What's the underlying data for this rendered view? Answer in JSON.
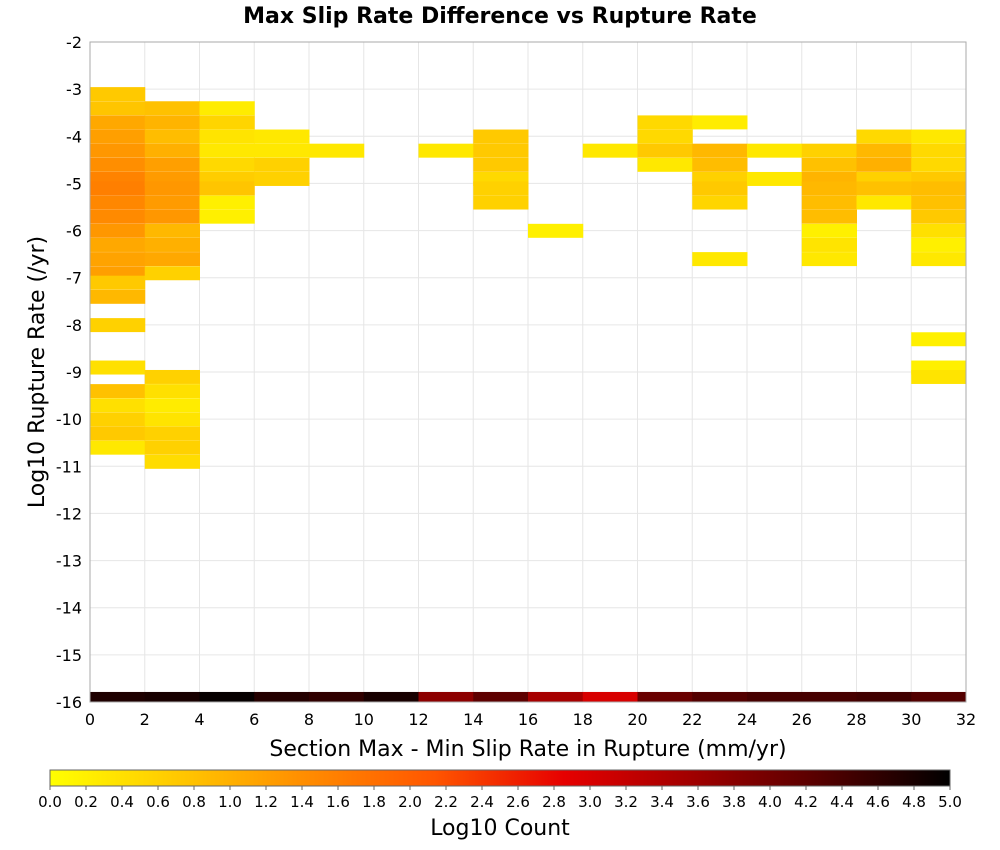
{
  "chart_data": {
    "type": "heatmap",
    "title": "Max Slip Rate Difference vs Rupture Rate",
    "xlabel": "Section Max - Min Slip Rate in Rupture (mm/yr)",
    "ylabel": "Log10 Rupture Rate (/yr)",
    "xlim": [
      0,
      32
    ],
    "ylim": [
      -16,
      -2
    ],
    "x_ticks": [
      0,
      2,
      4,
      6,
      8,
      10,
      12,
      14,
      16,
      18,
      20,
      22,
      24,
      26,
      28,
      30,
      32
    ],
    "y_ticks": [
      -2,
      -3,
      -4,
      -5,
      -6,
      -7,
      -8,
      -9,
      -10,
      -11,
      -12,
      -13,
      -14,
      -15,
      -16
    ],
    "grid": true,
    "x_bin_width": 2,
    "y_bin_height": 0.286,
    "colorbar": {
      "label": "Log10 Count",
      "range": [
        0,
        5
      ],
      "ticks": [
        "0.0",
        "0.2",
        "0.4",
        "0.6",
        "0.8",
        "1.0",
        "1.2",
        "1.4",
        "1.6",
        "1.8",
        "2.0",
        "2.2",
        "2.4",
        "2.6",
        "2.8",
        "3.0",
        "3.2",
        "3.4",
        "3.6",
        "3.8",
        "4.0",
        "4.2",
        "4.4",
        "4.6",
        "4.8",
        "5.0"
      ]
    },
    "cells": [
      [
        1,
        -3.1,
        0.7
      ],
      [
        1,
        -3.4,
        0.75
      ],
      [
        1,
        -3.7,
        1.1
      ],
      [
        1,
        -4.0,
        1.2
      ],
      [
        1,
        -4.3,
        1.3
      ],
      [
        1,
        -4.6,
        1.4
      ],
      [
        1,
        -4.9,
        1.55
      ],
      [
        1,
        -5.1,
        1.6
      ],
      [
        1,
        -5.4,
        1.5
      ],
      [
        1,
        -5.7,
        1.45
      ],
      [
        1,
        -6.0,
        1.3
      ],
      [
        1,
        -6.3,
        1.1
      ],
      [
        1,
        -6.6,
        1.15
      ],
      [
        1,
        -6.9,
        1.2
      ],
      [
        1,
        -7.1,
        0.7
      ],
      [
        1,
        -7.4,
        0.9
      ],
      [
        1,
        -8.0,
        0.6
      ],
      [
        1,
        -8.9,
        0.4
      ],
      [
        1,
        -9.4,
        0.8
      ],
      [
        1,
        -9.7,
        0.4
      ],
      [
        1,
        -10.0,
        0.6
      ],
      [
        1,
        -10.3,
        0.7
      ],
      [
        1,
        -10.6,
        0.3
      ],
      [
        3,
        -3.4,
        0.8
      ],
      [
        3,
        -3.7,
        0.95
      ],
      [
        3,
        -4.0,
        0.85
      ],
      [
        3,
        -4.3,
        1.0
      ],
      [
        3,
        -4.6,
        1.2
      ],
      [
        3,
        -4.9,
        1.25
      ],
      [
        3,
        -5.1,
        1.3
      ],
      [
        3,
        -5.4,
        1.25
      ],
      [
        3,
        -5.7,
        1.3
      ],
      [
        3,
        -6.0,
        0.9
      ],
      [
        3,
        -6.3,
        1.0
      ],
      [
        3,
        -6.6,
        1.1
      ],
      [
        3,
        -6.9,
        0.6
      ],
      [
        3,
        -9.1,
        0.6
      ],
      [
        3,
        -9.4,
        0.4
      ],
      [
        3,
        -9.7,
        0.25
      ],
      [
        3,
        -10.0,
        0.35
      ],
      [
        3,
        -10.3,
        0.6
      ],
      [
        3,
        -10.6,
        0.6
      ],
      [
        3,
        -10.9,
        0.45
      ],
      [
        5,
        -3.4,
        0.25
      ],
      [
        5,
        -3.7,
        0.55
      ],
      [
        5,
        -4.0,
        0.35
      ],
      [
        5,
        -4.3,
        0.3
      ],
      [
        5,
        -4.6,
        0.5
      ],
      [
        5,
        -4.9,
        0.65
      ],
      [
        5,
        -5.1,
        0.75
      ],
      [
        5,
        -5.4,
        0.2
      ],
      [
        5,
        -5.7,
        0.2
      ],
      [
        7,
        -4.0,
        0.3
      ],
      [
        7,
        -4.3,
        0.3
      ],
      [
        7,
        -4.6,
        0.6
      ],
      [
        7,
        -4.9,
        0.6
      ],
      [
        9,
        -4.3,
        0.3
      ],
      [
        13,
        -4.3,
        0.3
      ],
      [
        15,
        -4.0,
        0.7
      ],
      [
        15,
        -4.3,
        0.7
      ],
      [
        15,
        -4.6,
        0.7
      ],
      [
        15,
        -4.9,
        0.5
      ],
      [
        15,
        -5.1,
        0.6
      ],
      [
        15,
        -5.4,
        0.6
      ],
      [
        17,
        -6.0,
        0.2
      ],
      [
        19,
        -4.3,
        0.3
      ],
      [
        21,
        -3.7,
        0.5
      ],
      [
        21,
        -4.0,
        0.5
      ],
      [
        21,
        -4.3,
        0.7
      ],
      [
        21,
        -4.6,
        0.3
      ],
      [
        23,
        -3.7,
        0.25
      ],
      [
        23,
        -4.3,
        0.9
      ],
      [
        23,
        -4.6,
        0.85
      ],
      [
        23,
        -4.9,
        0.6
      ],
      [
        23,
        -5.1,
        0.7
      ],
      [
        23,
        -5.4,
        0.55
      ],
      [
        23,
        -6.6,
        0.3
      ],
      [
        25,
        -4.3,
        0.3
      ],
      [
        25,
        -4.9,
        0.3
      ],
      [
        27,
        -4.3,
        0.6
      ],
      [
        27,
        -4.6,
        0.8
      ],
      [
        27,
        -4.9,
        0.95
      ],
      [
        27,
        -5.1,
        0.9
      ],
      [
        27,
        -5.4,
        0.85
      ],
      [
        27,
        -5.7,
        0.85
      ],
      [
        27,
        -6.0,
        0.2
      ],
      [
        27,
        -6.3,
        0.35
      ],
      [
        27,
        -6.6,
        0.3
      ],
      [
        29,
        -4.0,
        0.5
      ],
      [
        29,
        -4.3,
        0.9
      ],
      [
        29,
        -4.6,
        1.0
      ],
      [
        29,
        -4.9,
        0.6
      ],
      [
        29,
        -5.1,
        0.8
      ],
      [
        29,
        -5.4,
        0.3
      ],
      [
        31,
        -4.0,
        0.3
      ],
      [
        31,
        -4.3,
        0.5
      ],
      [
        31,
        -4.6,
        0.5
      ],
      [
        31,
        -4.9,
        0.7
      ],
      [
        31,
        -5.1,
        0.85
      ],
      [
        31,
        -5.4,
        0.8
      ],
      [
        31,
        -5.7,
        0.7
      ],
      [
        31,
        -6.0,
        0.4
      ],
      [
        31,
        -6.3,
        0.2
      ],
      [
        31,
        -6.6,
        0.3
      ],
      [
        31,
        -8.3,
        0.2
      ],
      [
        31,
        -8.9,
        0.2
      ],
      [
        31,
        -9.1,
        0.35
      ]
    ],
    "bottom_row": {
      "y": -15.93,
      "x": [
        1,
        3,
        5,
        7,
        9,
        11,
        13,
        15,
        17,
        19,
        21,
        23,
        25,
        27,
        29,
        31
      ],
      "values": [
        4.75,
        4.8,
        4.95,
        4.7,
        4.6,
        4.8,
        3.75,
        4.2,
        3.5,
        3.0,
        4.1,
        4.3,
        4.4,
        4.4,
        4.45,
        4.3
      ]
    },
    "colors": {
      "stops": [
        "#ffff00",
        "#ffc800",
        "#ff8c00",
        "#ff5500",
        "#e60000",
        "#a00000",
        "#550000",
        "#000000"
      ],
      "grid": "#e6e6e6",
      "frame": "#aaaaaa"
    }
  }
}
